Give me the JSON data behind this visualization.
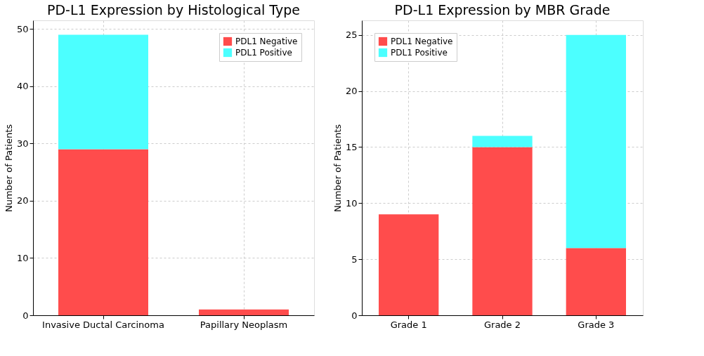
{
  "chart_data": [
    {
      "type": "bar",
      "stacked": true,
      "title": "PD-L1 Expression by Histological Type",
      "ylabel": "Number of Patients",
      "categories": [
        "Invasive Ductal Carcinoma",
        "Papillary Neoplasm"
      ],
      "series": [
        {
          "name": "PDL1 Negative",
          "color": "#ff4c4c",
          "values": [
            29,
            1
          ]
        },
        {
          "name": "PDL1 Positive",
          "color": "#4cffff",
          "values": [
            20,
            0
          ]
        }
      ],
      "ylim": [
        0,
        51.5
      ],
      "yticks": [
        0,
        10,
        20,
        30,
        40,
        50
      ],
      "grid": true,
      "legend": "top right"
    },
    {
      "type": "bar",
      "stacked": true,
      "title": "PD-L1 Expression by MBR Grade",
      "ylabel": "Number of Patients",
      "categories": [
        "Grade 1",
        "Grade 2",
        "Grade 3"
      ],
      "series": [
        {
          "name": "PDL1 Negative",
          "color": "#ff4c4c",
          "values": [
            9,
            15,
            6
          ]
        },
        {
          "name": "PDL1 Positive",
          "color": "#4cffff",
          "values": [
            0,
            1,
            19
          ]
        }
      ],
      "ylim": [
        0,
        26.3
      ],
      "yticks": [
        0,
        5,
        10,
        15,
        20,
        25
      ],
      "grid": true,
      "legend": "top left"
    }
  ]
}
